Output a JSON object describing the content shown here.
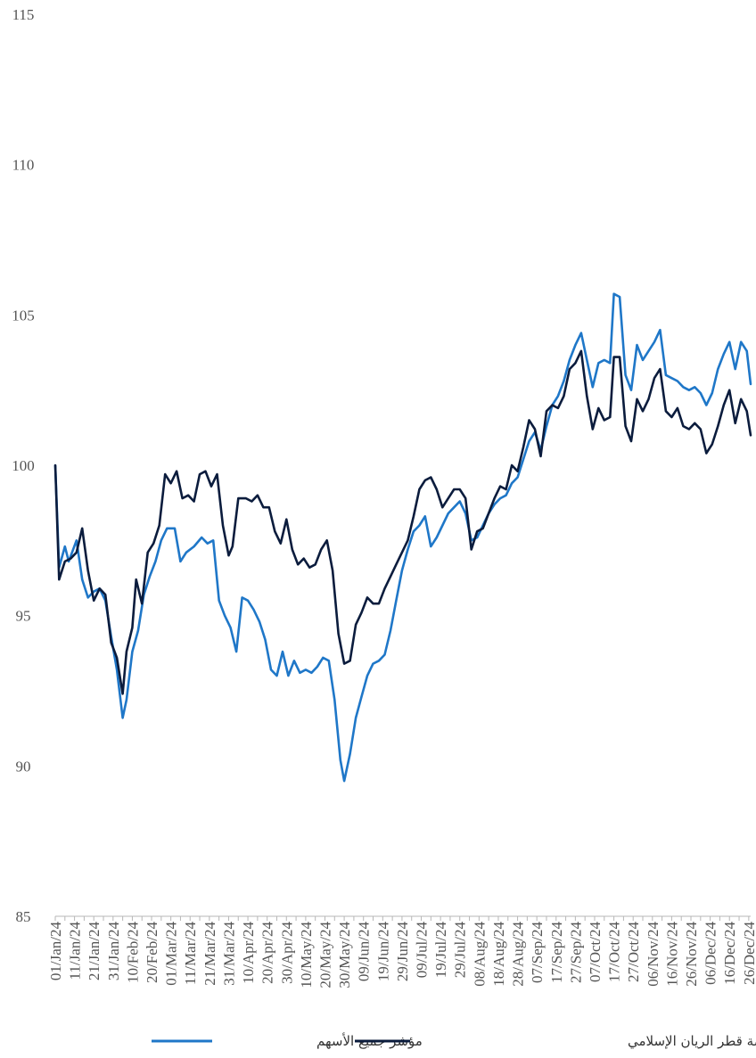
{
  "chart_data": {
    "type": "line",
    "title": "",
    "xlabel": "",
    "ylabel": "",
    "ylim": [
      85,
      115
    ],
    "yticks": [
      85,
      90,
      95,
      100,
      105,
      110,
      115
    ],
    "grid": false,
    "legend_position": "bottom",
    "x_tick_labels": [
      "01/Jan/24",
      "11/Jan/24",
      "21/Jan/24",
      "31/Jan/24",
      "10/Feb/24",
      "20/Feb/24",
      "01/Mar/24",
      "11/Mar/24",
      "21/Mar/24",
      "31/Mar/24",
      "10/Apr/24",
      "20/Apr/24",
      "30/Apr/24",
      "10/May/24",
      "20/May/24",
      "30/May/24",
      "09/Jun/24",
      "19/Jun/24",
      "29/Jun/24",
      "09/Jul/24",
      "19/Jul/24",
      "29/Jul/24",
      "08/Aug/24",
      "18/Aug/24",
      "28/Aug/24",
      "07/Sep/24",
      "17/Sep/24",
      "27/Sep/24",
      "07/Oct/24",
      "17/Oct/24",
      "27/Oct/24",
      "06/Nov/24",
      "16/Nov/24",
      "26/Nov/24",
      "06/Dec/24",
      "16/Dec/24",
      "26/Dec/24"
    ],
    "series": [
      {
        "name": "مؤشر جميع الأسهم",
        "color": "#1f77c8",
        "points": [
          [
            "01/Jan/24",
            100.0
          ],
          [
            "03/Jan/24",
            96.6
          ],
          [
            "06/Jan/24",
            97.3
          ],
          [
            "08/Jan/24",
            96.8
          ],
          [
            "12/Jan/24",
            97.5
          ],
          [
            "15/Jan/24",
            96.2
          ],
          [
            "18/Jan/24",
            95.6
          ],
          [
            "21/Jan/24",
            95.8
          ],
          [
            "24/Jan/24",
            95.9
          ],
          [
            "27/Jan/24",
            95.5
          ],
          [
            "30/Jan/24",
            94.3
          ],
          [
            "02/Feb/24",
            93.2
          ],
          [
            "05/Feb/24",
            91.6
          ],
          [
            "07/Feb/24",
            92.2
          ],
          [
            "10/Feb/24",
            93.8
          ],
          [
            "13/Feb/24",
            94.5
          ],
          [
            "16/Feb/24",
            95.7
          ],
          [
            "19/Feb/24",
            96.3
          ],
          [
            "22/Feb/24",
            96.8
          ],
          [
            "25/Feb/24",
            97.5
          ],
          [
            "28/Feb/24",
            97.9
          ],
          [
            "03/Mar/24",
            97.9
          ],
          [
            "06/Mar/24",
            96.8
          ],
          [
            "09/Mar/24",
            97.1
          ],
          [
            "13/Mar/24",
            97.3
          ],
          [
            "17/Mar/24",
            97.6
          ],
          [
            "20/Mar/24",
            97.4
          ],
          [
            "23/Mar/24",
            97.5
          ],
          [
            "26/Mar/24",
            95.5
          ],
          [
            "29/Mar/24",
            95.0
          ],
          [
            "01/Apr/24",
            94.6
          ],
          [
            "04/Apr/24",
            93.8
          ],
          [
            "07/Apr/24",
            95.6
          ],
          [
            "10/Apr/24",
            95.5
          ],
          [
            "13/Apr/24",
            95.2
          ],
          [
            "16/Apr/24",
            94.8
          ],
          [
            "19/Apr/24",
            94.2
          ],
          [
            "22/Apr/24",
            93.2
          ],
          [
            "25/Apr/24",
            93.0
          ],
          [
            "28/Apr/24",
            93.8
          ],
          [
            "01/May/24",
            93.0
          ],
          [
            "04/May/24",
            93.5
          ],
          [
            "07/May/24",
            93.1
          ],
          [
            "10/May/24",
            93.2
          ],
          [
            "13/May/24",
            93.1
          ],
          [
            "16/May/24",
            93.3
          ],
          [
            "19/May/24",
            93.6
          ],
          [
            "22/May/24",
            93.5
          ],
          [
            "25/May/24",
            92.2
          ],
          [
            "28/May/24",
            90.2
          ],
          [
            "30/May/24",
            89.5
          ],
          [
            "02/Jun/24",
            90.4
          ],
          [
            "05/Jun/24",
            91.6
          ],
          [
            "08/Jun/24",
            92.3
          ],
          [
            "11/Jun/24",
            93.0
          ],
          [
            "14/Jun/24",
            93.4
          ],
          [
            "17/Jun/24",
            93.5
          ],
          [
            "20/Jun/24",
            93.7
          ],
          [
            "23/Jun/24",
            94.5
          ],
          [
            "26/Jun/24",
            95.5
          ],
          [
            "29/Jun/24",
            96.5
          ],
          [
            "02/Jul/24",
            97.2
          ],
          [
            "05/Jul/24",
            97.8
          ],
          [
            "08/Jul/24",
            98.0
          ],
          [
            "11/Jul/24",
            98.3
          ],
          [
            "14/Jul/24",
            97.3
          ],
          [
            "17/Jul/24",
            97.6
          ],
          [
            "20/Jul/24",
            98.0
          ],
          [
            "23/Jul/24",
            98.4
          ],
          [
            "26/Jul/24",
            98.6
          ],
          [
            "29/Jul/24",
            98.8
          ],
          [
            "01/Aug/24",
            98.4
          ],
          [
            "04/Aug/24",
            97.5
          ],
          [
            "07/Aug/24",
            97.6
          ],
          [
            "10/Aug/24",
            98.0
          ],
          [
            "13/Aug/24",
            98.4
          ],
          [
            "16/Aug/24",
            98.7
          ],
          [
            "19/Aug/24",
            98.9
          ],
          [
            "22/Aug/24",
            99.0
          ],
          [
            "25/Aug/24",
            99.4
          ],
          [
            "28/Aug/24",
            99.6
          ],
          [
            "31/Aug/24",
            100.2
          ],
          [
            "03/Sep/24",
            100.8
          ],
          [
            "06/Sep/24",
            101.1
          ],
          [
            "09/Sep/24",
            100.5
          ],
          [
            "12/Sep/24",
            101.3
          ],
          [
            "15/Sep/24",
            102.0
          ],
          [
            "18/Sep/24",
            102.3
          ],
          [
            "21/Sep/24",
            102.8
          ],
          [
            "24/Sep/24",
            103.5
          ],
          [
            "27/Sep/24",
            104.0
          ],
          [
            "30/Sep/24",
            104.4
          ],
          [
            "03/Oct/24",
            103.5
          ],
          [
            "06/Oct/24",
            102.6
          ],
          [
            "09/Oct/24",
            103.4
          ],
          [
            "12/Oct/24",
            103.5
          ],
          [
            "15/Oct/24",
            103.4
          ],
          [
            "17/Oct/24",
            105.7
          ],
          [
            "20/Oct/24",
            105.6
          ],
          [
            "23/Oct/24",
            103.0
          ],
          [
            "26/Oct/24",
            102.5
          ],
          [
            "29/Oct/24",
            104.0
          ],
          [
            "01/Nov/24",
            103.5
          ],
          [
            "04/Nov/24",
            103.8
          ],
          [
            "07/Nov/24",
            104.1
          ],
          [
            "10/Nov/24",
            104.5
          ],
          [
            "13/Nov/24",
            103.0
          ],
          [
            "16/Nov/24",
            102.9
          ],
          [
            "19/Nov/24",
            102.8
          ],
          [
            "22/Nov/24",
            102.6
          ],
          [
            "25/Nov/24",
            102.5
          ],
          [
            "28/Nov/24",
            102.6
          ],
          [
            "01/Dec/24",
            102.4
          ],
          [
            "04/Dec/24",
            102.0
          ],
          [
            "07/Dec/24",
            102.4
          ],
          [
            "10/Dec/24",
            103.2
          ],
          [
            "13/Dec/24",
            103.7
          ],
          [
            "16/Dec/24",
            104.1
          ],
          [
            "19/Dec/24",
            103.2
          ],
          [
            "22/Dec/24",
            104.1
          ],
          [
            "25/Dec/24",
            103.8
          ],
          [
            "27/Dec/24",
            102.7
          ]
        ]
      },
      {
        "name": "مؤشر بورصة قطر الريان الإسلامي",
        "color": "#0b1c3d",
        "points": [
          [
            "01/Jan/24",
            100.0
          ],
          [
            "03/Jan/24",
            96.2
          ],
          [
            "06/Jan/24",
            96.8
          ],
          [
            "09/Jan/24",
            96.9
          ],
          [
            "12/Jan/24",
            97.1
          ],
          [
            "15/Jan/24",
            97.9
          ],
          [
            "18/Jan/24",
            96.5
          ],
          [
            "21/Jan/24",
            95.5
          ],
          [
            "24/Jan/24",
            95.9
          ],
          [
            "27/Jan/24",
            95.7
          ],
          [
            "30/Jan/24",
            94.1
          ],
          [
            "02/Feb/24",
            93.6
          ],
          [
            "05/Feb/24",
            92.4
          ],
          [
            "07/Feb/24",
            93.8
          ],
          [
            "10/Feb/24",
            94.6
          ],
          [
            "12/Feb/24",
            96.2
          ],
          [
            "15/Feb/24",
            95.4
          ],
          [
            "18/Feb/24",
            97.1
          ],
          [
            "21/Feb/24",
            97.4
          ],
          [
            "24/Feb/24",
            98.0
          ],
          [
            "27/Feb/24",
            99.7
          ],
          [
            "01/Mar/24",
            99.4
          ],
          [
            "04/Mar/24",
            99.8
          ],
          [
            "07/Mar/24",
            98.9
          ],
          [
            "10/Mar/24",
            99.0
          ],
          [
            "13/Mar/24",
            98.8
          ],
          [
            "16/Mar/24",
            99.7
          ],
          [
            "19/Mar/24",
            99.8
          ],
          [
            "22/Mar/24",
            99.3
          ],
          [
            "25/Mar/24",
            99.7
          ],
          [
            "28/Mar/24",
            98.0
          ],
          [
            "31/Mar/24",
            97.0
          ],
          [
            "02/Apr/24",
            97.3
          ],
          [
            "05/Apr/24",
            98.9
          ],
          [
            "09/Apr/24",
            98.9
          ],
          [
            "12/Apr/24",
            98.8
          ],
          [
            "15/Apr/24",
            99.0
          ],
          [
            "18/Apr/24",
            98.6
          ],
          [
            "21/Apr/24",
            98.6
          ],
          [
            "24/Apr/24",
            97.8
          ],
          [
            "27/Apr/24",
            97.4
          ],
          [
            "30/Apr/24",
            98.2
          ],
          [
            "03/May/24",
            97.2
          ],
          [
            "06/May/24",
            96.7
          ],
          [
            "09/May/24",
            96.9
          ],
          [
            "12/May/24",
            96.6
          ],
          [
            "15/May/24",
            96.7
          ],
          [
            "18/May/24",
            97.2
          ],
          [
            "21/May/24",
            97.5
          ],
          [
            "24/May/24",
            96.5
          ],
          [
            "27/May/24",
            94.4
          ],
          [
            "30/May/24",
            93.4
          ],
          [
            "02/Jun/24",
            93.5
          ],
          [
            "05/Jun/24",
            94.7
          ],
          [
            "08/Jun/24",
            95.1
          ],
          [
            "11/Jun/24",
            95.6
          ],
          [
            "14/Jun/24",
            95.4
          ],
          [
            "17/Jun/24",
            95.4
          ],
          [
            "20/Jun/24",
            95.9
          ],
          [
            "23/Jun/24",
            96.3
          ],
          [
            "26/Jun/24",
            96.7
          ],
          [
            "29/Jun/24",
            97.1
          ],
          [
            "02/Jul/24",
            97.5
          ],
          [
            "05/Jul/24",
            98.3
          ],
          [
            "08/Jul/24",
            99.2
          ],
          [
            "11/Jul/24",
            99.5
          ],
          [
            "14/Jul/24",
            99.6
          ],
          [
            "17/Jul/24",
            99.2
          ],
          [
            "20/Jul/24",
            98.6
          ],
          [
            "23/Jul/24",
            98.9
          ],
          [
            "26/Jul/24",
            99.2
          ],
          [
            "29/Jul/24",
            99.2
          ],
          [
            "01/Aug/24",
            98.9
          ],
          [
            "04/Aug/24",
            97.2
          ],
          [
            "07/Aug/24",
            97.8
          ],
          [
            "10/Aug/24",
            97.9
          ],
          [
            "13/Aug/24",
            98.4
          ],
          [
            "16/Aug/24",
            98.9
          ],
          [
            "19/Aug/24",
            99.3
          ],
          [
            "22/Aug/24",
            99.2
          ],
          [
            "25/Aug/24",
            100.0
          ],
          [
            "28/Aug/24",
            99.8
          ],
          [
            "31/Aug/24",
            100.6
          ],
          [
            "03/Sep/24",
            101.5
          ],
          [
            "06/Sep/24",
            101.2
          ],
          [
            "09/Sep/24",
            100.3
          ],
          [
            "12/Sep/24",
            101.8
          ],
          [
            "15/Sep/24",
            102.0
          ],
          [
            "18/Sep/24",
            101.9
          ],
          [
            "21/Sep/24",
            102.3
          ],
          [
            "24/Sep/24",
            103.2
          ],
          [
            "27/Sep/24",
            103.4
          ],
          [
            "30/Sep/24",
            103.8
          ],
          [
            "03/Oct/24",
            102.3
          ],
          [
            "06/Oct/24",
            101.2
          ],
          [
            "09/Oct/24",
            101.9
          ],
          [
            "12/Oct/24",
            101.5
          ],
          [
            "15/Oct/24",
            101.6
          ],
          [
            "17/Oct/24",
            103.6
          ],
          [
            "20/Oct/24",
            103.6
          ],
          [
            "23/Oct/24",
            101.3
          ],
          [
            "26/Oct/24",
            100.8
          ],
          [
            "29/Oct/24",
            102.2
          ],
          [
            "01/Nov/24",
            101.8
          ],
          [
            "04/Nov/24",
            102.2
          ],
          [
            "07/Nov/24",
            102.9
          ],
          [
            "10/Nov/24",
            103.2
          ],
          [
            "13/Nov/24",
            101.8
          ],
          [
            "16/Nov/24",
            101.6
          ],
          [
            "19/Nov/24",
            101.9
          ],
          [
            "22/Nov/24",
            101.3
          ],
          [
            "25/Nov/24",
            101.2
          ],
          [
            "28/Nov/24",
            101.4
          ],
          [
            "01/Dec/24",
            101.2
          ],
          [
            "04/Dec/24",
            100.4
          ],
          [
            "07/Dec/24",
            100.7
          ],
          [
            "10/Dec/24",
            101.3
          ],
          [
            "13/Dec/24",
            102.0
          ],
          [
            "16/Dec/24",
            102.5
          ],
          [
            "19/Dec/24",
            101.4
          ],
          [
            "22/Dec/24",
            102.2
          ],
          [
            "25/Dec/24",
            101.8
          ],
          [
            "27/Dec/24",
            101.0
          ]
        ]
      }
    ]
  }
}
